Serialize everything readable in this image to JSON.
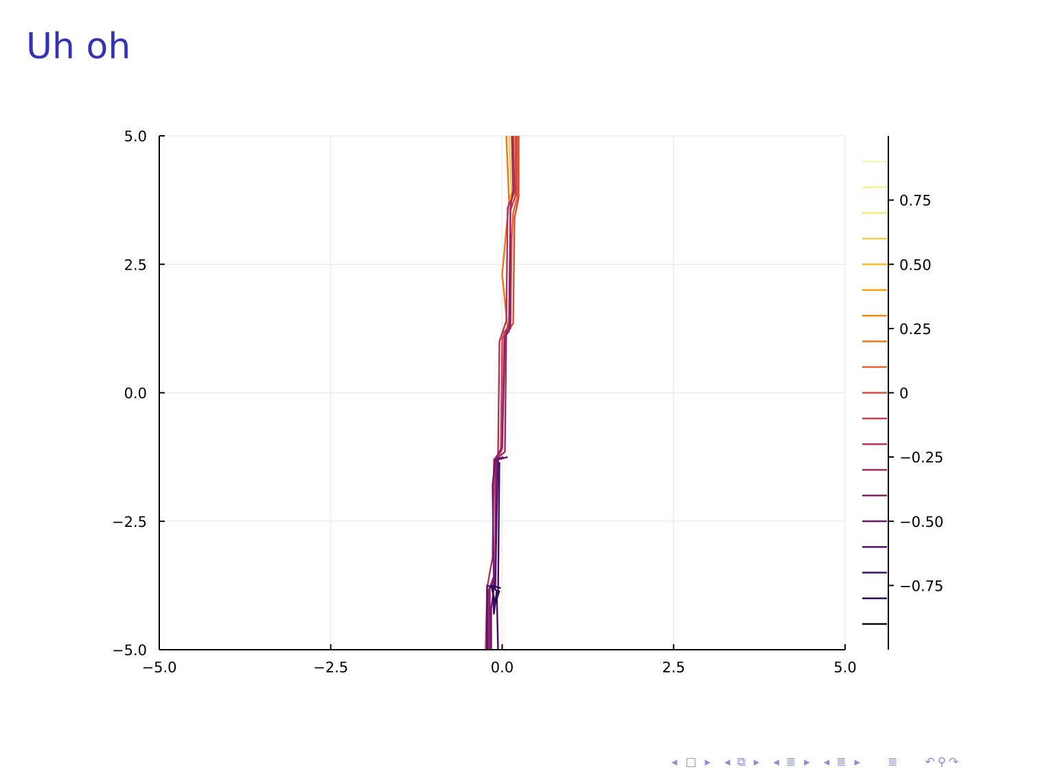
{
  "slide": {
    "title": "Uh oh"
  },
  "chart_data": {
    "type": "contour",
    "xlim": [
      -5,
      5
    ],
    "ylim": [
      -5,
      5
    ],
    "xticks": [
      "−5.0",
      "−2.5",
      "0.0",
      "2.5",
      "5.0"
    ],
    "xtick_values": [
      -5,
      -2.5,
      0,
      2.5,
      5
    ],
    "yticks": [
      "−5.0",
      "−2.5",
      "0.0",
      "2.5",
      "5.0"
    ],
    "ytick_values": [
      -5,
      -2.5,
      0,
      2.5,
      5
    ],
    "grid": true,
    "colorbar": {
      "colormap": "inferno",
      "levels": [
        -0.9,
        -0.8,
        -0.7,
        -0.6,
        -0.5,
        -0.4,
        -0.3,
        -0.2,
        -0.1,
        0,
        0.1,
        0.2,
        0.3,
        0.4,
        0.5,
        0.6,
        0.7,
        0.8,
        0.9
      ],
      "level_colors": [
        "#0b0524",
        "#2a0b52",
        "#3f0e63",
        "#57106e",
        "#6e176e",
        "#86216a",
        "#9c2964",
        "#b4325a",
        "#c73f4d",
        "#d94d3d",
        "#e85f2d",
        "#f2741b",
        "#f88a0c",
        "#fba40a",
        "#f9bc24",
        "#f4d34a",
        "#f1e978",
        "#f4f29a",
        "#f8f6b6"
      ],
      "tick_labels": [
        "−0.75",
        "−0.50",
        "−0.25",
        "0",
        "0.25",
        "0.50",
        "0.75"
      ],
      "tick_values": [
        -0.75,
        -0.5,
        -0.25,
        0,
        0.25,
        0.5,
        0.75
      ]
    },
    "contour_bands": [
      {
        "color": "#f4c63a",
        "points": [
          [
            0.1,
            5.0
          ],
          [
            0.14,
            3.8
          ],
          [
            0.18,
            3.75
          ],
          [
            0.2,
            5.0
          ]
        ]
      },
      {
        "color": "#f9a51a",
        "points": [
          [
            0.18,
            5.0
          ],
          [
            0.2,
            4.1
          ],
          [
            0.1,
            3.75
          ]
        ]
      },
      {
        "color": "#f2741b",
        "points": [
          [
            0.06,
            5.0
          ],
          [
            0.1,
            3.75
          ],
          [
            0.0,
            2.3
          ],
          [
            0.08,
            1.25
          ]
        ]
      },
      {
        "color": "#e8611f",
        "points": [
          [
            0.22,
            5.0
          ],
          [
            0.22,
            3.8
          ],
          [
            0.16,
            3.5
          ],
          [
            0.14,
            3.0
          ],
          [
            0.12,
            1.3
          ],
          [
            0.0,
            1.15
          ]
        ]
      },
      {
        "color": "#d94d3d",
        "points": [
          [
            0.24,
            5.0
          ],
          [
            0.24,
            3.8
          ],
          [
            0.18,
            3.4
          ],
          [
            0.16,
            1.35
          ],
          [
            0.03,
            1.1
          ],
          [
            0.0,
            -1.1
          ],
          [
            -0.08,
            -1.3
          ]
        ]
      },
      {
        "color": "#c73f4d",
        "points": [
          [
            0.2,
            5.0
          ],
          [
            0.2,
            3.85
          ],
          [
            0.12,
            3.55
          ],
          [
            0.1,
            1.35
          ],
          [
            0.0,
            1.05
          ],
          [
            -0.02,
            -1.15
          ]
        ]
      },
      {
        "color": "#b4325a",
        "points": [
          [
            0.16,
            5.0
          ],
          [
            0.18,
            3.9
          ],
          [
            0.08,
            3.6
          ],
          [
            0.06,
            1.4
          ],
          [
            -0.04,
            1.0
          ],
          [
            -0.06,
            -1.2
          ],
          [
            -0.12,
            -1.3
          ],
          [
            -0.14,
            -3.2
          ],
          [
            -0.22,
            -3.8
          ],
          [
            -0.24,
            -5.0
          ]
        ]
      },
      {
        "color": "#9c2964",
        "points": [
          [
            0.14,
            5.0
          ],
          [
            0.16,
            3.95
          ],
          [
            0.12,
            3.6
          ],
          [
            0.12,
            1.25
          ],
          [
            0.06,
            1.2
          ],
          [
            0.04,
            -1.15
          ],
          [
            -0.1,
            -1.3
          ],
          [
            -0.1,
            -3.5
          ],
          [
            -0.2,
            -3.85
          ],
          [
            -0.2,
            -5.0
          ]
        ]
      },
      {
        "color": "#86216a",
        "points": [
          [
            0.12,
            3.1
          ],
          [
            0.1,
            1.2
          ],
          [
            0.04,
            1.1
          ],
          [
            0.0,
            -1.05
          ],
          [
            -0.08,
            -1.25
          ],
          [
            -0.1,
            -3.6
          ],
          [
            -0.18,
            -3.8
          ],
          [
            -0.18,
            -5.0
          ]
        ]
      },
      {
        "color": "#6e176e",
        "points": [
          [
            0.02,
            -1.25
          ],
          [
            -0.1,
            -1.3
          ],
          [
            -0.14,
            -1.8
          ],
          [
            -0.12,
            -3.8
          ],
          [
            -0.16,
            -4.2
          ],
          [
            -0.16,
            -5.0
          ]
        ]
      },
      {
        "color": "#57106e",
        "points": [
          [
            0.08,
            -1.25
          ],
          [
            -0.06,
            -1.3
          ],
          [
            -0.08,
            -2.4
          ],
          [
            -0.1,
            -3.8
          ],
          [
            -0.22,
            -3.75
          ],
          [
            -0.22,
            -5.0
          ]
        ]
      },
      {
        "color": "#3f0e63",
        "points": [
          [
            -0.04,
            -1.35
          ],
          [
            -0.06,
            -3.9
          ],
          [
            -0.14,
            -3.75
          ],
          [
            -0.12,
            -4.3
          ],
          [
            -0.08,
            -3.85
          ],
          [
            -0.06,
            -5.0
          ]
        ]
      },
      {
        "color": "#2a0b52",
        "points": [
          [
            -0.02,
            -3.8
          ],
          [
            -0.16,
            -3.75
          ],
          [
            -0.1,
            -4.1
          ],
          [
            -0.04,
            -3.85
          ]
        ]
      }
    ]
  },
  "nav": {
    "icons": [
      "arrow-left-icon",
      "frame-icon",
      "arrow-right-icon",
      "arrow-left-icon",
      "subsection-icon",
      "arrow-right-icon",
      "arrow-left-icon",
      "section-icon",
      "arrow-right-icon",
      "arrow-left-icon",
      "section-icon",
      "arrow-right-icon",
      "toc-icon",
      "undo-icon",
      "search-icon",
      "redo-icon"
    ]
  }
}
